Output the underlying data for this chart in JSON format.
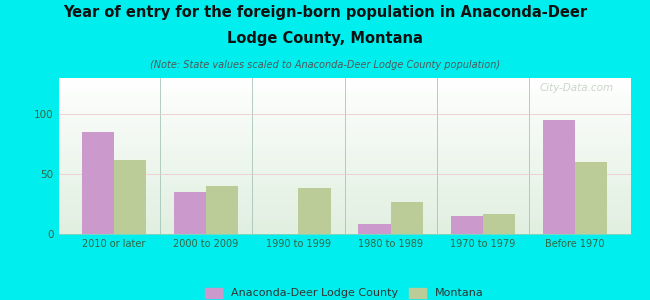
{
  "categories": [
    "2010 or later",
    "2000 to 2009",
    "1990 to 1999",
    "1980 to 1989",
    "1970 to 1979",
    "Before 1970"
  ],
  "county_values": [
    85,
    35,
    0,
    8,
    15,
    95
  ],
  "state_values": [
    62,
    40,
    38,
    27,
    17,
    60
  ],
  "county_color": "#cc99cc",
  "state_color": "#bbcc99",
  "title_line1": "Year of entry for the foreign-born population in Anaconda-Deer",
  "title_line2": "Lodge County, Montana",
  "subtitle": "(Note: State values scaled to Anaconda-Deer Lodge County population)",
  "legend_county": "Anaconda-Deer Lodge County",
  "legend_state": "Montana",
  "background_color": "#00eeee",
  "plot_bg": "#e8f5e8",
  "ylim": [
    0,
    130
  ],
  "yticks": [
    0,
    50,
    100
  ],
  "bar_width": 0.35,
  "watermark": "City-Data.com"
}
